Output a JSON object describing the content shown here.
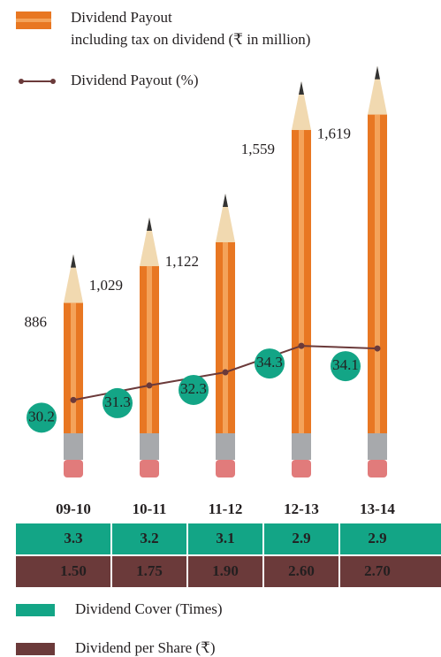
{
  "chart_data": {
    "type": "bar",
    "categories": [
      "09-10",
      "10-11",
      "11-12",
      "12-13",
      "13-14"
    ],
    "ylim": [
      0,
      1800
    ],
    "y2lim": [
      24,
      59
    ],
    "series": [
      {
        "name": "Dividend Payout",
        "note": "including tax on dividend (₹ in million)",
        "color": "#e87722",
        "values": [
          886,
          1029,
          1122,
          1559,
          1619
        ],
        "value_labels": [
          "886",
          "1,029",
          "1,122",
          "1,559",
          "1,619"
        ]
      },
      {
        "name": "Dividend Payout (%)",
        "color": "#6b3a3a",
        "axis": "y2",
        "type": "line",
        "label_color": "#13a586",
        "values": [
          30.2,
          31.3,
          32.3,
          34.3,
          34.1
        ]
      }
    ],
    "table": {
      "rows": [
        {
          "name": "Dividend Cover (Times)",
          "color": "#13a586",
          "values": [
            3.3,
            3.2,
            3.1,
            2.9,
            2.9
          ]
        },
        {
          "name": "Dividend per Share (₹)",
          "color": "#6b3a3a",
          "values": [
            1.5,
            1.75,
            1.9,
            2.6,
            2.7
          ],
          "value_labels": [
            "1.50",
            "1.75",
            "1.90",
            "2.60",
            "2.70"
          ]
        }
      ]
    }
  }
}
